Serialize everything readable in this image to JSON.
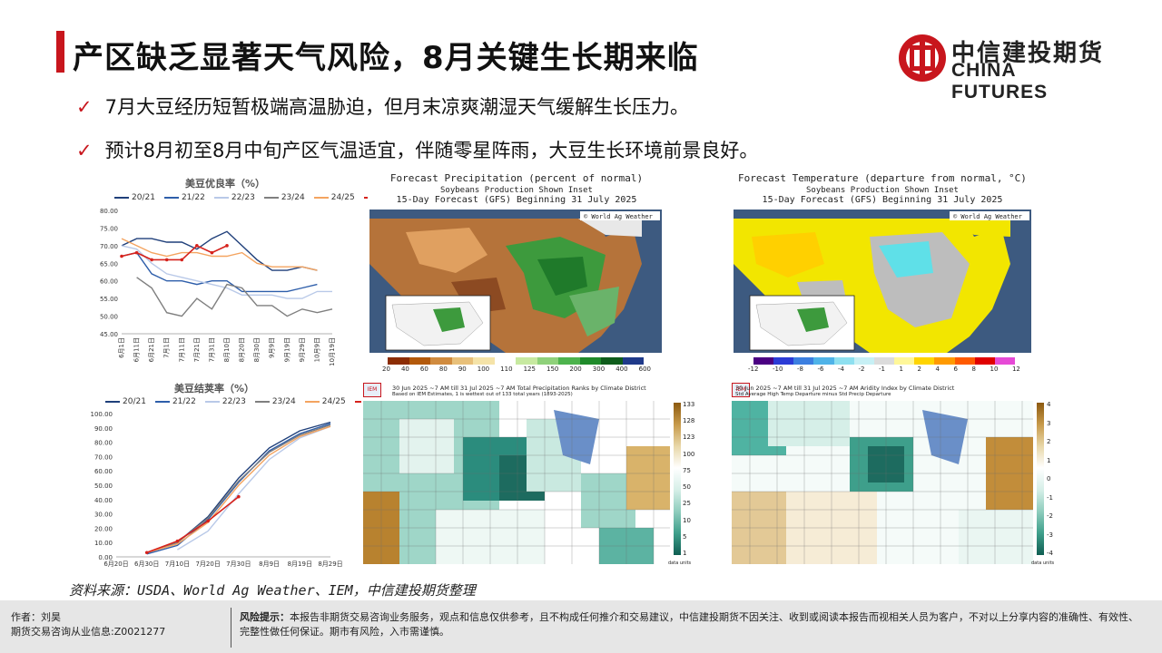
{
  "header": {
    "title": "产区缺乏显著天气风险，8月关键生长期来临",
    "logo_cn": "中信建投期货",
    "logo_en": "CHINA FUTURES"
  },
  "bullets": [
    "7月大豆经历短暂极端高温胁迫，但月末凉爽潮湿天气缓解生长压力。",
    "预计8月初至8月中旬产区气温适宜，伴随零星阵雨，大豆生长环境前景良好。"
  ],
  "chart_data": [
    {
      "type": "line",
      "title": "美豆优良率（%）",
      "categories": [
        "6月1日",
        "6月11日",
        "6月21日",
        "7月1日",
        "7月11日",
        "7月21日",
        "7月31日",
        "8月10日",
        "8月20日",
        "8月30日",
        "9月9日",
        "9月19日",
        "9月29日",
        "10月9日",
        "10月19日"
      ],
      "ylim": [
        45,
        80
      ],
      "yticks": [
        "45.00",
        "50.00",
        "55.00",
        "60.00",
        "65.00",
        "70.00",
        "75.00",
        "80.00"
      ],
      "series": [
        {
          "name": "20/21",
          "color": "#1f3f7a",
          "values": [
            70,
            72,
            72,
            71,
            71,
            69,
            72,
            74,
            70,
            66,
            63,
            63,
            64,
            63,
            null
          ]
        },
        {
          "name": "21/22",
          "color": "#2e5eaa",
          "values": [
            67,
            68,
            62,
            60,
            60,
            59,
            60,
            60,
            57,
            57,
            57,
            57,
            58,
            59,
            null
          ]
        },
        {
          "name": "22/23",
          "color": "#b9c9e8",
          "values": [
            70,
            69,
            65,
            62,
            61,
            60,
            59,
            58,
            56,
            56,
            56,
            55,
            55,
            57,
            57
          ]
        },
        {
          "name": "23/24",
          "color": "#7f7f7f",
          "values": [
            null,
            61,
            58,
            51,
            50,
            55,
            52,
            59,
            58,
            53,
            53,
            50,
            52,
            51,
            52
          ]
        },
        {
          "name": "24/25",
          "color": "#f4a460",
          "values": [
            72,
            70,
            68,
            67,
            68,
            68,
            67,
            67,
            68,
            65,
            64,
            64,
            64,
            63,
            null
          ]
        },
        {
          "name": "25/26",
          "color": "#d6221c",
          "values": [
            67,
            68,
            66,
            66,
            66,
            70,
            68,
            70,
            null,
            null,
            null,
            null,
            null,
            null,
            null
          ]
        }
      ]
    },
    {
      "type": "line",
      "title": "美豆结荚率（%）",
      "categories": [
        "6月20日",
        "6月30日",
        "7月10日",
        "7月20日",
        "7月30日",
        "8月9日",
        "8月19日",
        "8月29日"
      ],
      "ylim": [
        0,
        100
      ],
      "yticks": [
        "0.00",
        "10.00",
        "20.00",
        "30.00",
        "40.00",
        "50.00",
        "60.00",
        "70.00",
        "80.00",
        "90.00",
        "100.00"
      ],
      "series": [
        {
          "name": "20/21",
          "color": "#1f3f7a",
          "values": [
            null,
            3,
            10,
            28,
            55,
            76,
            88,
            94
          ]
        },
        {
          "name": "21/22",
          "color": "#2e5eaa",
          "values": [
            null,
            2,
            8,
            26,
            52,
            74,
            86,
            93
          ]
        },
        {
          "name": "22/23",
          "color": "#b9c9e8",
          "values": [
            null,
            null,
            5,
            18,
            44,
            68,
            83,
            91
          ]
        },
        {
          "name": "23/24",
          "color": "#7f7f7f",
          "values": [
            null,
            3,
            10,
            27,
            53,
            73,
            85,
            92
          ]
        },
        {
          "name": "24/25",
          "color": "#f4a460",
          "values": [
            null,
            3,
            9,
            24,
            50,
            71,
            84,
            91
          ]
        },
        {
          "name": "25/26",
          "color": "#d6221c",
          "values": [
            null,
            3,
            11,
            25,
            42,
            null,
            null,
            null
          ]
        }
      ]
    }
  ],
  "maps": {
    "precip": {
      "title": "Forecast Precipitation (percent of normal)",
      "subtitle1": "Soybeans Production Shown Inset",
      "subtitle2": "15-Day Forecast (GFS) Beginning 31 July 2025",
      "credit": "© World Ag Weather",
      "scale_labels": [
        "20",
        "40",
        "60",
        "80",
        "90",
        "100",
        "110",
        "125",
        "150",
        "200",
        "300",
        "400",
        "600"
      ]
    },
    "temp": {
      "title": "Forecast Temperature (departure from normal, °C)",
      "subtitle1": "Soybeans Production Shown Inset",
      "subtitle2": "15-Day Forecast (GFS) Beginning 31 July 2025",
      "credit": "© World Ag Weather",
      "scale_labels": [
        "-12",
        "-10",
        "-8",
        "-6",
        "-4",
        "-2",
        "-1",
        "1",
        "2",
        "4",
        "6",
        "8",
        "10",
        "12"
      ]
    },
    "iem_precip": {
      "title": "30 Jun 2025 ~7 AM till 31 Jul 2025 ~7 AM Total Precipitation Ranks by Climate District",
      "subtitle": "Based on IEM Estimates, 1 is wettest out of 133 total years (1893-2025)",
      "scale_labels": [
        "133",
        "128",
        "123",
        "100",
        "75",
        "50",
        "25",
        "10",
        "5",
        "1"
      ],
      "units": "data units"
    },
    "iem_aridity": {
      "title": "30 Jun 2025 ~7 AM till 31 Jul 2025 ~7 AM Aridity Index by Climate District",
      "subtitle": "Std Average High Temp Departure minus Std Precip Departure",
      "scale_labels": [
        "4",
        "3",
        "2",
        "1",
        "0",
        "-1",
        "-2",
        "-3",
        "-4"
      ],
      "units": "data units"
    }
  },
  "source": "资料来源：USDA、World Ag Weather、IEM，中信建投期货整理",
  "footer": {
    "author": "作者：刘昊",
    "license": "期货交易咨询从业信息:Z0021277",
    "risk_label": "风险提示：",
    "risk_text": "本报告非期货交易咨询业务服务，观点和信息仅供参考，且不构成任何推介和交易建议，中信建投期货不因关注、收到或阅读本报告而视相关人员为客户，不对以上分享内容的准确性、有效性、完整性做任何保证。期市有风险，入市需谨慎。"
  },
  "colors": {
    "accent": "#c8161d",
    "footer_bg": "#e6e6e6"
  }
}
